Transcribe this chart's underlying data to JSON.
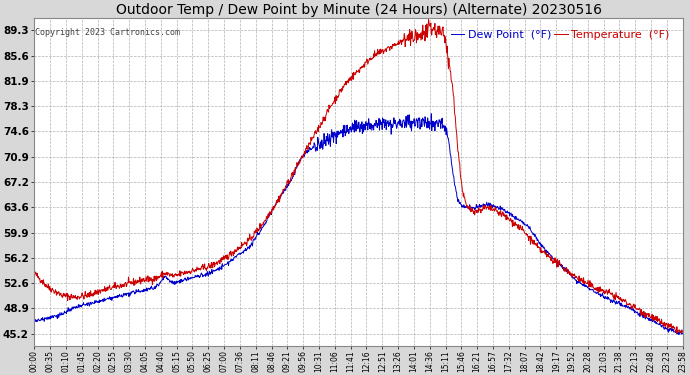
{
  "title": "Outdoor Temp / Dew Point by Minute (24 Hours) (Alternate) 20230516",
  "copyright": "Copyright 2023 Cartronics.com",
  "legend_dew": "Dew Point  (°F)",
  "legend_temp": "Temperature  (°F)",
  "yticks": [
    45.2,
    48.9,
    52.6,
    56.2,
    59.9,
    63.6,
    67.2,
    70.9,
    74.6,
    78.3,
    81.9,
    85.6,
    89.3
  ],
  "ymin": 43.4,
  "ymax": 91.1,
  "temp_color": "#cc0000",
  "dew_color": "#0000cc",
  "bg_color": "#d8d8d8",
  "plot_bg": "#ffffff",
  "grid_color": "#aaaaaa",
  "title_fontsize": 10,
  "xtick_labels": [
    "00:00",
    "00:35",
    "01:10",
    "01:45",
    "02:20",
    "02:55",
    "03:30",
    "04:05",
    "04:40",
    "05:15",
    "05:50",
    "06:25",
    "07:00",
    "07:36",
    "08:11",
    "08:46",
    "09:21",
    "09:56",
    "10:31",
    "11:06",
    "11:41",
    "12:16",
    "12:51",
    "13:26",
    "14:01",
    "14:36",
    "15:11",
    "15:46",
    "16:21",
    "16:57",
    "17:32",
    "18:07",
    "18:42",
    "19:17",
    "19:52",
    "20:28",
    "21:03",
    "21:38",
    "22:13",
    "22:48",
    "23:23",
    "23:58"
  ]
}
